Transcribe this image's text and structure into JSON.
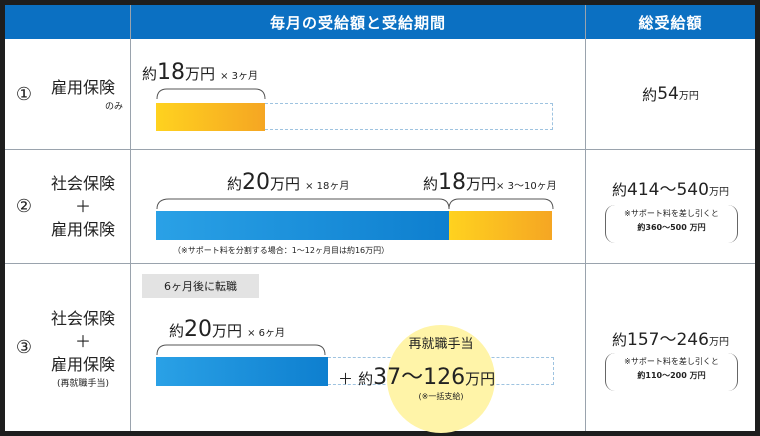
{
  "header": {
    "col_monthly": "毎月の受給額と受給期間",
    "col_total": "総受給額"
  },
  "rows": [
    {
      "num": "①",
      "label_lines": [
        "雇用保険"
      ],
      "label_sub": "のみ",
      "items": [
        {
          "prefix": "約",
          "amount": "18",
          "unit": "万円",
          "period": "× 3ヶ月"
        }
      ],
      "total": {
        "prefix": "約",
        "amount": "54",
        "unit": "万円"
      }
    },
    {
      "num": "②",
      "label_lines": [
        "社会保険",
        "＋",
        "雇用保険"
      ],
      "items": [
        {
          "prefix": "約",
          "amount": "20",
          "unit": "万円",
          "period": "× 18ヶ月"
        },
        {
          "prefix": "約",
          "amount": "18",
          "unit": "万円",
          "period": "× 3～10ヶ月"
        }
      ],
      "note": "（※サポート料を分割する場合：1～12ヶ月目は約16万円）",
      "total": {
        "prefix": "約",
        "amount": "414～540",
        "unit": "万円",
        "note_line1": "※サポート料を差し引くと",
        "note_line2": "約360～500 万円"
      }
    },
    {
      "num": "③",
      "label_lines": [
        "社会保険",
        "＋",
        "雇用保険"
      ],
      "label_sub": "(再就職手当)",
      "tag": "6ヶ月後に転職",
      "items": [
        {
          "prefix": "約",
          "amount": "20",
          "unit": "万円",
          "period": "× 6ヶ月"
        }
      ],
      "bonus": {
        "title": "再就職手当",
        "plus": "＋",
        "prefix": "約",
        "amount": "37～126",
        "unit": "万円",
        "note": "(※一括支給)"
      },
      "total": {
        "prefix": "約",
        "amount": "157～246",
        "unit": "万円",
        "note_line1": "※サポート料を差し引くと",
        "note_line2": "約110～200 万円"
      }
    }
  ],
  "colors": {
    "header_blue": "#0b70c2",
    "bar_blue": "#1a8fdb",
    "bar_yellow": "#f7b81c",
    "bonus_circle": "#fff4a8"
  }
}
